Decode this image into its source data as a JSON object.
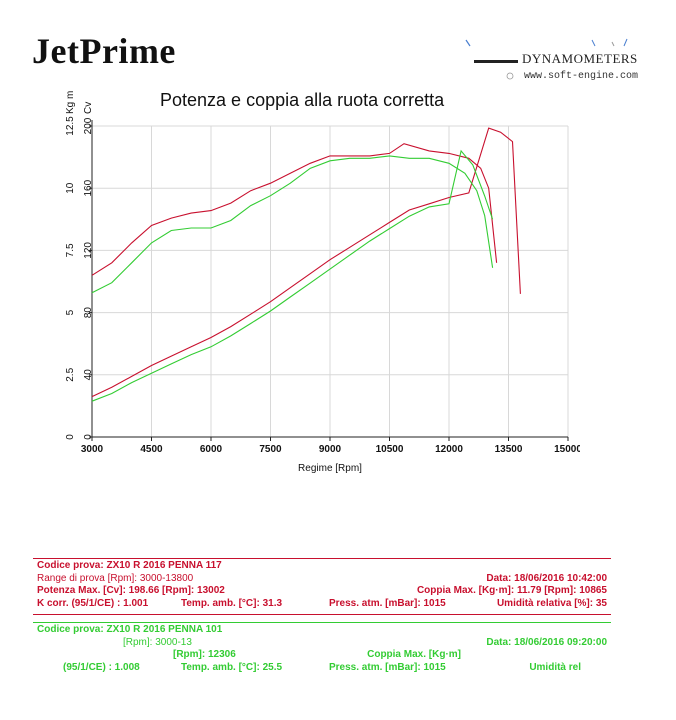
{
  "header": {
    "brand": "JetPrime",
    "logo_text": "DYNAMOMETERS",
    "logo_url": "www.soft-engine.com"
  },
  "chart_data": {
    "type": "line",
    "title": "Potenza e coppia alla ruota corretta",
    "xlabel": "Regime [Rpm]",
    "ylabel_torque": "Kg m",
    "ylabel_power": "Cv",
    "xlim": [
      3000,
      15000
    ],
    "xticks": [
      "3000",
      "4500",
      "6000",
      "7500",
      "9000",
      "10500",
      "12000",
      "13500",
      "15000"
    ],
    "power_ticks": [
      "0",
      "40",
      "80",
      "120",
      "160",
      "200"
    ],
    "torque_ticks": [
      "0",
      "2.5",
      "5",
      "7.5",
      "10",
      "12.5"
    ],
    "power_max": 200,
    "torque_max": 12.5,
    "grid": true,
    "colors": {
      "run1": "#c8102e",
      "run2": "#33cc33",
      "grid": "#d8d8d8"
    },
    "series": [
      {
        "name": "ZX10 R 2016 PENNA 117 - Potenza",
        "axis": "power",
        "color": "#c8102e",
        "points": [
          [
            3000,
            26
          ],
          [
            3500,
            32
          ],
          [
            4000,
            39
          ],
          [
            4500,
            46
          ],
          [
            5000,
            52
          ],
          [
            5500,
            58
          ],
          [
            6000,
            64
          ],
          [
            6500,
            71
          ],
          [
            7000,
            79
          ],
          [
            7500,
            87
          ],
          [
            8000,
            96
          ],
          [
            8500,
            105
          ],
          [
            9000,
            114
          ],
          [
            9500,
            122
          ],
          [
            10000,
            130
          ],
          [
            10500,
            138
          ],
          [
            11000,
            146
          ],
          [
            11500,
            150
          ],
          [
            12000,
            154
          ],
          [
            12500,
            157
          ],
          [
            13002,
            198.66
          ],
          [
            13300,
            196
          ],
          [
            13600,
            190
          ],
          [
            13800,
            92
          ]
        ]
      },
      {
        "name": "ZX10 R 2016 PENNA 117 - Coppia",
        "axis": "torque",
        "color": "#c8102e",
        "points": [
          [
            3000,
            6.5
          ],
          [
            3500,
            7.0
          ],
          [
            4000,
            7.8
          ],
          [
            4500,
            8.5
          ],
          [
            5000,
            8.8
          ],
          [
            5500,
            9.0
          ],
          [
            6000,
            9.1
          ],
          [
            6500,
            9.4
          ],
          [
            7000,
            9.9
          ],
          [
            7500,
            10.2
          ],
          [
            8000,
            10.6
          ],
          [
            8500,
            11.0
          ],
          [
            9000,
            11.3
          ],
          [
            9500,
            11.3
          ],
          [
            10000,
            11.3
          ],
          [
            10500,
            11.4
          ],
          [
            10865,
            11.79
          ],
          [
            11500,
            11.5
          ],
          [
            12000,
            11.4
          ],
          [
            12500,
            11.2
          ],
          [
            12800,
            10.8
          ],
          [
            13000,
            10.0
          ],
          [
            13200,
            7.0
          ]
        ]
      },
      {
        "name": "ZX10 R 2016 PENNA 101 - Potenza",
        "axis": "power",
        "color": "#33cc33",
        "points": [
          [
            3000,
            23
          ],
          [
            3500,
            28
          ],
          [
            4000,
            35
          ],
          [
            4500,
            41
          ],
          [
            5000,
            47
          ],
          [
            5500,
            53
          ],
          [
            6000,
            58
          ],
          [
            6500,
            65
          ],
          [
            7000,
            73
          ],
          [
            7500,
            81
          ],
          [
            8000,
            90
          ],
          [
            8500,
            99
          ],
          [
            9000,
            108
          ],
          [
            9500,
            117
          ],
          [
            10000,
            126
          ],
          [
            10500,
            134
          ],
          [
            11000,
            142
          ],
          [
            11500,
            148
          ],
          [
            12000,
            150
          ],
          [
            12306,
            184
          ],
          [
            12600,
            175
          ],
          [
            12900,
            155
          ],
          [
            13100,
            140
          ]
        ]
      },
      {
        "name": "ZX10 R 2016 PENNA 101 - Coppia",
        "axis": "torque",
        "color": "#33cc33",
        "points": [
          [
            3000,
            5.8
          ],
          [
            3500,
            6.2
          ],
          [
            4000,
            7.0
          ],
          [
            4500,
            7.8
          ],
          [
            5000,
            8.3
          ],
          [
            5500,
            8.4
          ],
          [
            6000,
            8.4
          ],
          [
            6500,
            8.7
          ],
          [
            7000,
            9.3
          ],
          [
            7500,
            9.7
          ],
          [
            8000,
            10.2
          ],
          [
            8500,
            10.8
          ],
          [
            9000,
            11.1
          ],
          [
            9500,
            11.2
          ],
          [
            10000,
            11.2
          ],
          [
            10500,
            11.3
          ],
          [
            11000,
            11.2
          ],
          [
            11500,
            11.2
          ],
          [
            12000,
            11.0
          ],
          [
            12400,
            10.6
          ],
          [
            12700,
            9.9
          ],
          [
            12900,
            8.9
          ],
          [
            13100,
            6.8
          ]
        ]
      }
    ]
  },
  "run1": {
    "line1": "Codice prova: ZX10 R 2016 PENNA 117",
    "line2": "Range di prova [Rpm]: 3000-13800",
    "date": "Data: 18/06/2016   10:42:00",
    "pot": "Potenza Max. [Cv]: 198.66   [Rpm]: 13002",
    "coppia": "Coppia Max. [Kg·m]: 11.79   [Rpm]: 10865",
    "kcorr": "K corr. (95/1/CE) : 1.001",
    "temp": "Temp. amb. [°C]: 31.3",
    "press": "Press. atm. [mBar]: 1015",
    "umid": "Umidità relativa [%]: 35"
  },
  "run2": {
    "line1": "Codice prova: ZX10 R 2016 PENNA 101",
    "line2": "[Rpm]: 3000-13",
    "date": "Data: 18/06/2016   09:20:00",
    "pot": "[Rpm]: 12306",
    "coppia": "Coppia Max. [Kg·m]",
    "kcorr": "(95/1/CE) : 1.008",
    "temp": "Temp. amb. [°C]: 25.5",
    "press": "Press. atm. [mBar]: 1015",
    "umid": "Umidità rel"
  }
}
